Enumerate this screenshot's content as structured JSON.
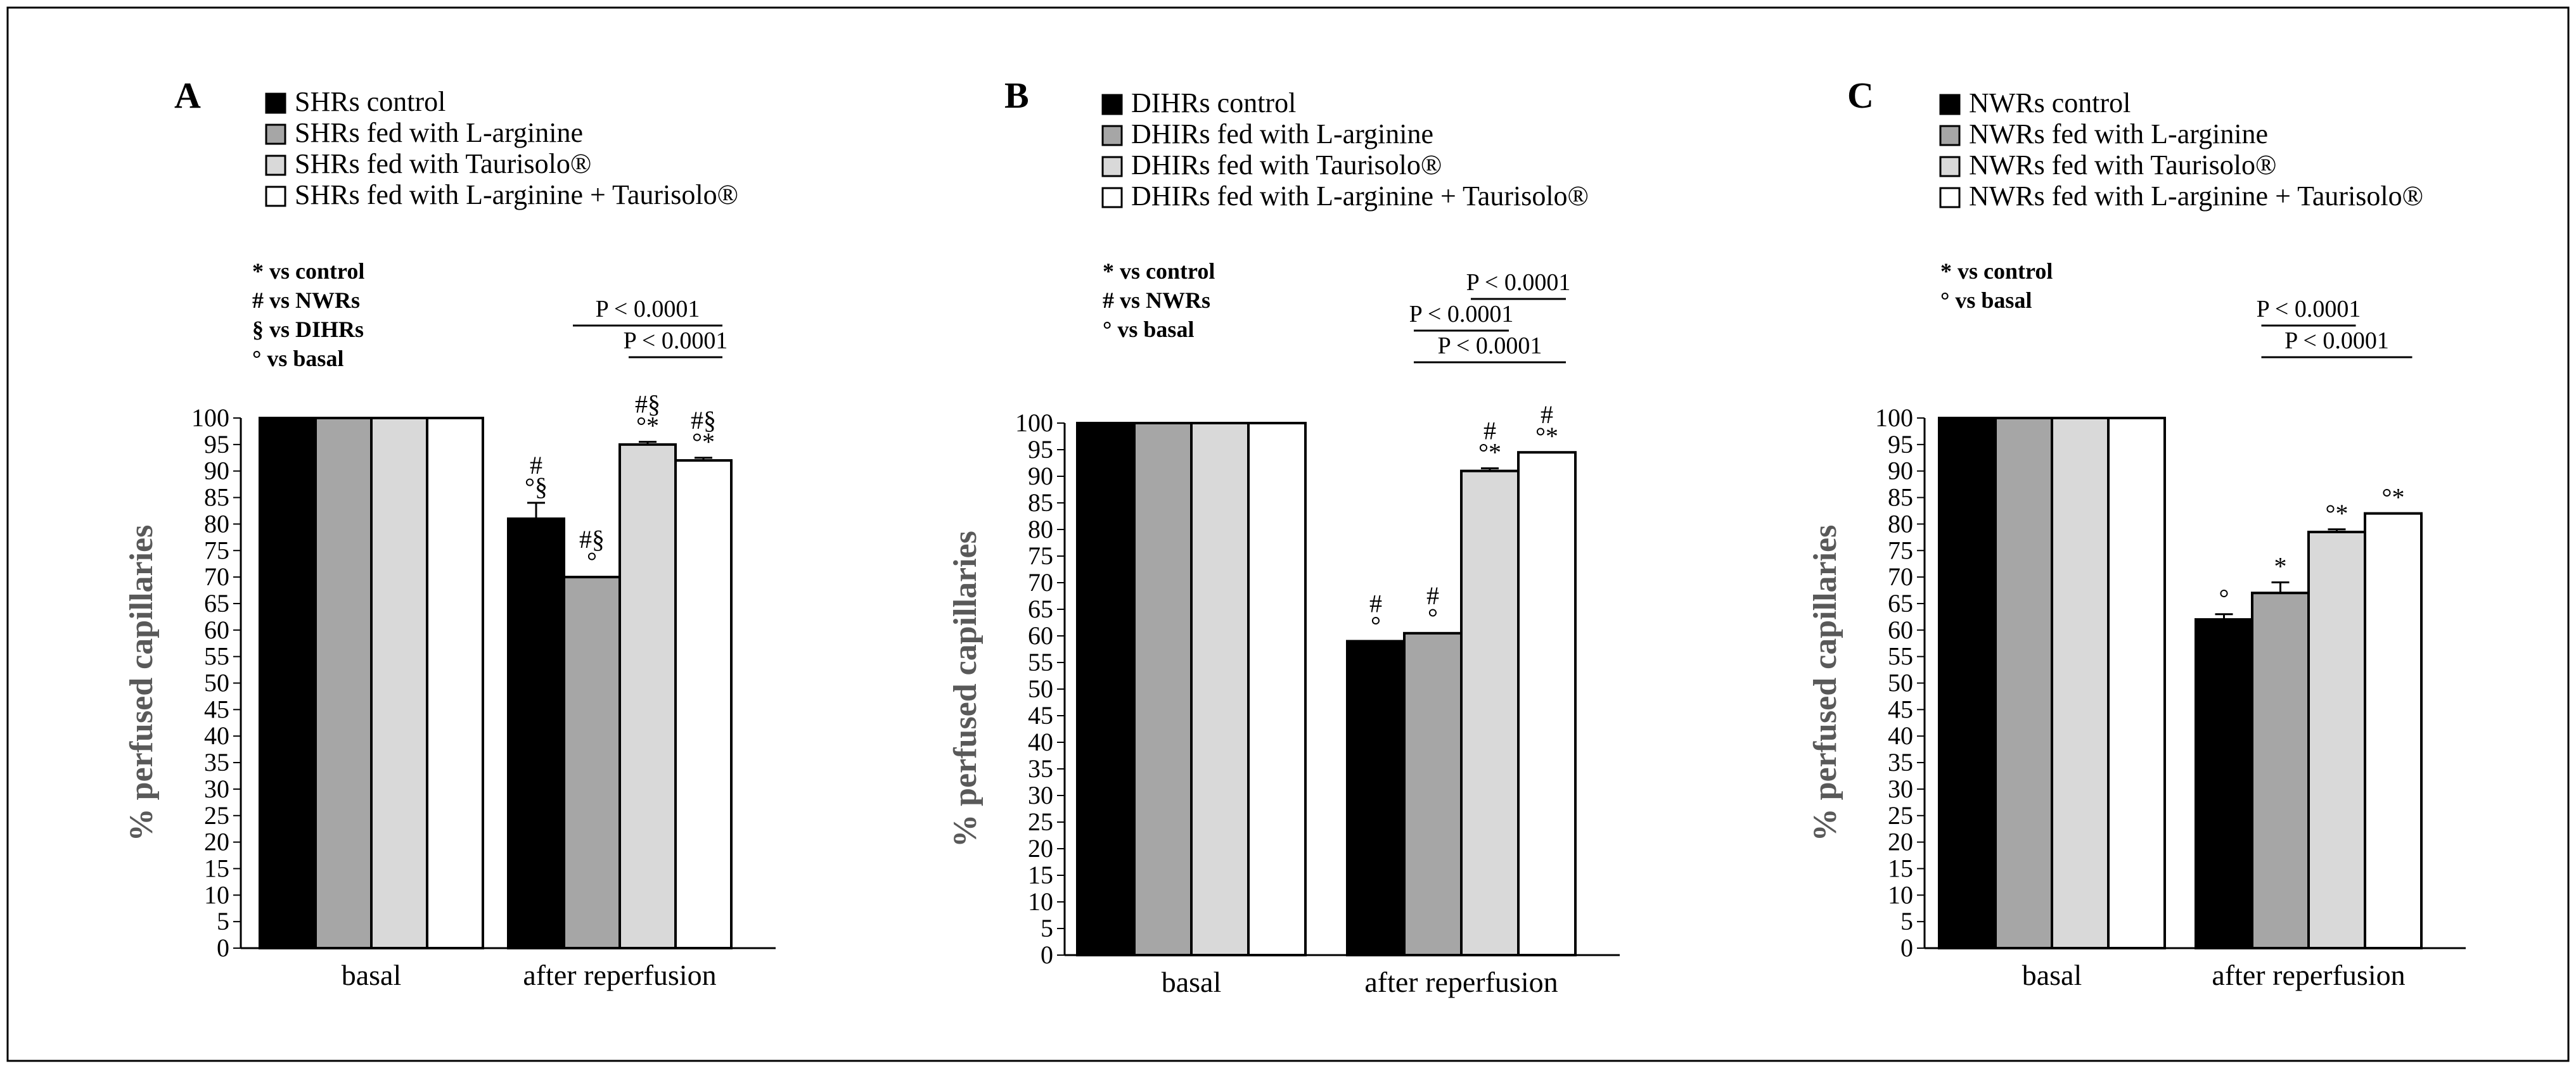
{
  "figure": {
    "ylabel": "% perfused capillaries",
    "yticks": [
      0,
      5,
      10,
      15,
      20,
      25,
      30,
      35,
      40,
      45,
      50,
      55,
      60,
      65,
      70,
      75,
      80,
      85,
      90,
      95,
      100
    ]
  },
  "colors": {
    "black": "#000000",
    "dark_gray": "#a6a6a6",
    "light_gray": "#d9d9d9",
    "white": "#ffffff",
    "axis_label": "#595959"
  },
  "chart_data": [
    {
      "type": "bar",
      "panel": "A",
      "categories": [
        "basal",
        "after reperfusion"
      ],
      "ylabel": "% perfused capillaries",
      "ylim": [
        0,
        100
      ],
      "legend": [
        "SHRs control",
        "SHRs fed with L-arginine",
        "SHRs fed with Taurisolo®",
        "SHRs fed with L-arginine + Taurisolo®"
      ],
      "series": [
        {
          "name": "SHRs control",
          "values": [
            100,
            81
          ],
          "errors": [
            0,
            3
          ],
          "marks": [
            "",
            "#\n°§"
          ]
        },
        {
          "name": "SHRs fed with L-arginine",
          "values": [
            100,
            70
          ],
          "errors": [
            0,
            0
          ],
          "marks": [
            "",
            "#§\n°"
          ]
        },
        {
          "name": "SHRs fed with Taurisolo®",
          "values": [
            100,
            95
          ],
          "errors": [
            0,
            0.5
          ],
          "marks": [
            "",
            "#§\n°*"
          ]
        },
        {
          "name": "SHRs fed with L-arginine + Taurisolo®",
          "values": [
            100,
            92
          ],
          "errors": [
            0,
            0.5
          ],
          "marks": [
            "",
            "#§\n°*"
          ]
        }
      ],
      "footnotes": [
        "* vs control",
        "# vs NWRs",
        "§ vs DIHRs",
        "° vs basal"
      ],
      "comparisons": [
        {
          "label": "P < 0.0001",
          "from": 2,
          "to": 3
        },
        {
          "label": "P < 0.0001",
          "from": 1,
          "to": 3
        }
      ]
    },
    {
      "type": "bar",
      "panel": "B",
      "categories": [
        "basal",
        "after reperfusion"
      ],
      "ylabel": "% perfused capillaries",
      "ylim": [
        0,
        100
      ],
      "legend": [
        "DIHRs control",
        "DHIRs fed with L-arginine",
        "DHIRs fed with Taurisolo®",
        "DHIRs fed with L-arginine + Taurisolo®"
      ],
      "series": [
        {
          "name": "DIHRs control",
          "values": [
            100,
            59
          ],
          "errors": [
            0,
            0
          ],
          "marks": [
            "",
            "#\n°"
          ]
        },
        {
          "name": "DHIRs fed with L-arginine",
          "values": [
            100,
            60.5
          ],
          "errors": [
            0,
            0
          ],
          "marks": [
            "",
            "#\n°"
          ]
        },
        {
          "name": "DHIRs fed with Taurisolo®",
          "values": [
            100,
            91
          ],
          "errors": [
            0,
            0.5
          ],
          "marks": [
            "",
            "#\n°*"
          ]
        },
        {
          "name": "DHIRs fed with L-arginine + Taurisolo®",
          "values": [
            100,
            94.5
          ],
          "errors": [
            0,
            0
          ],
          "marks": [
            "",
            "#\n°*"
          ]
        }
      ],
      "footnotes": [
        "* vs control",
        "# vs NWRs",
        "° vs basal"
      ],
      "comparisons": [
        {
          "label": "P < 0.0001",
          "from": 1,
          "to": 3
        },
        {
          "label": "P < 0.0001",
          "from": 1,
          "to": 2
        },
        {
          "label": "P < 0.0001",
          "from": 2,
          "to": 3
        }
      ]
    },
    {
      "type": "bar",
      "panel": "C",
      "categories": [
        "basal",
        "after reperfusion"
      ],
      "ylabel": "% perfused capillaries",
      "ylim": [
        0,
        100
      ],
      "legend": [
        "NWRs control",
        "NWRs fed with L-arginine",
        "NWRs fed with Taurisolo®",
        "NWRs fed with L-arginine + Taurisolo®"
      ],
      "series": [
        {
          "name": "NWRs control",
          "values": [
            100,
            62
          ],
          "errors": [
            0,
            1
          ],
          "marks": [
            "",
            "°"
          ]
        },
        {
          "name": "NWRs fed with L-arginine",
          "values": [
            100,
            67
          ],
          "errors": [
            0,
            2
          ],
          "marks": [
            "",
            "*"
          ]
        },
        {
          "name": "NWRs fed with Taurisolo®",
          "values": [
            100,
            78.5
          ],
          "errors": [
            0,
            0.5
          ],
          "marks": [
            "",
            "°*"
          ]
        },
        {
          "name": "NWRs fed with L-arginine + Taurisolo®",
          "values": [
            100,
            82
          ],
          "errors": [
            0,
            0
          ],
          "marks": [
            "",
            "°*"
          ]
        }
      ],
      "footnotes": [
        "* vs control",
        "° vs basal"
      ],
      "comparisons": [
        {
          "label": "P < 0.0001",
          "from": 1,
          "to": 3
        },
        {
          "label": "P < 0.0001",
          "from": 1,
          "to": 2
        }
      ]
    }
  ]
}
